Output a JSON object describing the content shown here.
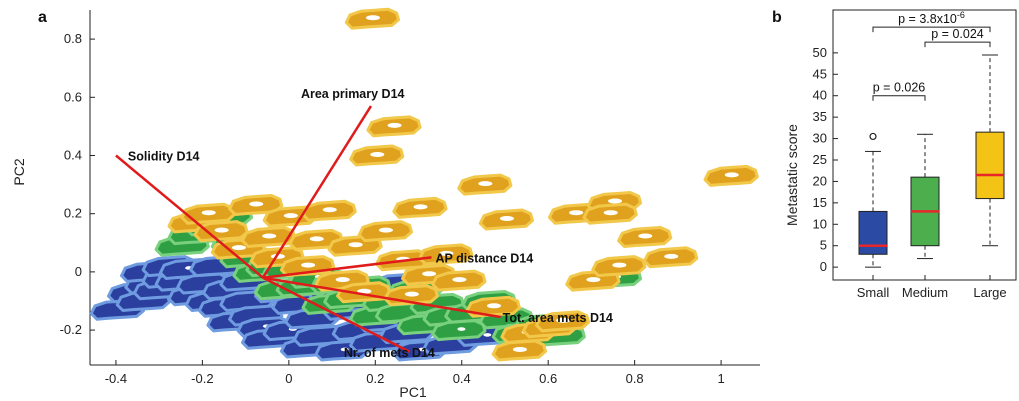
{
  "chart_data": [
    {
      "panel": "a",
      "type": "scatter",
      "xlabel": "PC1",
      "ylabel": "PC2",
      "xlim": [
        -0.46,
        1.09
      ],
      "ylim": [
        -0.32,
        0.9
      ],
      "xticks": [
        "-0.4",
        "-0.2",
        "0",
        "0.2",
        "0.4",
        "0.6",
        "0.8",
        "1"
      ],
      "xtick_values": [
        -0.4,
        -0.2,
        0,
        0.2,
        0.4,
        0.6,
        0.8,
        1
      ],
      "yticks": [
        "-0.2",
        "0",
        "0.2",
        "0.4",
        "0.6",
        "0.8"
      ],
      "ytick_values": [
        -0.2,
        0,
        0.2,
        0.4,
        0.6,
        0.8
      ],
      "colors": {
        "small": "#2b3f9e",
        "small_outline": "#6f9be0",
        "medium": "#2ea043",
        "medium_outline": "#79d07e",
        "large": "#e0a21e",
        "large_outline": "#f2c84a",
        "vector": "#e01b1b"
      },
      "origin": [
        -0.06,
        -0.02
      ],
      "vectors": [
        {
          "label": "Area primary D14",
          "end": [
            0.19,
            0.57
          ]
        },
        {
          "label": "Solidity D14",
          "end": [
            -0.4,
            0.4
          ]
        },
        {
          "label": "AP distance D14",
          "end": [
            0.33,
            0.05
          ]
        },
        {
          "label": "Tot. area mets D14",
          "end": [
            0.49,
            -0.155
          ]
        },
        {
          "label": "Nr. of mets D14",
          "end": [
            0.28,
            -0.275
          ]
        }
      ],
      "points": {
        "small": [
          [
            -0.4,
            -0.13
          ],
          [
            -0.36,
            -0.07
          ],
          [
            -0.34,
            -0.1
          ],
          [
            -0.32,
            -0.04
          ],
          [
            -0.33,
            0
          ],
          [
            -0.3,
            -0.06
          ],
          [
            -0.28,
            -0.02
          ],
          [
            -0.28,
            0.02
          ],
          [
            -0.25,
            -0.03
          ],
          [
            -0.24,
            0.01
          ],
          [
            -0.22,
            -0.08
          ],
          [
            -0.2,
            -0.04
          ],
          [
            -0.18,
            -0.1
          ],
          [
            -0.17,
            0.02
          ],
          [
            -0.15,
            -0.12
          ],
          [
            -0.14,
            -0.06
          ],
          [
            -0.13,
            -0.17
          ],
          [
            -0.1,
            -0.03
          ],
          [
            -0.1,
            -0.1
          ],
          [
            -0.08,
            -0.15
          ],
          [
            -0.06,
            -0.19
          ],
          [
            -0.05,
            -0.23
          ],
          [
            -0.02,
            -0.07
          ],
          [
            0,
            -0.2
          ],
          [
            0.02,
            -0.11
          ],
          [
            0.04,
            -0.26
          ],
          [
            0.05,
            -0.16
          ],
          [
            0.07,
            -0.22
          ],
          [
            0.1,
            -0.06
          ],
          [
            0.12,
            -0.27
          ],
          [
            0.14,
            -0.13
          ],
          [
            0.16,
            -0.2
          ],
          [
            0.18,
            -0.1
          ],
          [
            0.2,
            -0.24
          ],
          [
            0.22,
            -0.17
          ],
          [
            0.25,
            -0.04
          ],
          [
            0.27,
            -0.21
          ],
          [
            0.3,
            -0.27
          ],
          [
            0.33,
            -0.12
          ],
          [
            0.37,
            -0.25
          ],
          [
            0.42,
            -0.19
          ],
          [
            0.45,
            -0.22
          ]
        ],
        "medium": [
          [
            -0.25,
            0.09
          ],
          [
            -0.22,
            0.13
          ],
          [
            -0.18,
            0.16
          ],
          [
            -0.15,
            0.19
          ],
          [
            -0.12,
            0.1
          ],
          [
            -0.1,
            0.05
          ],
          [
            -0.07,
            0
          ],
          [
            -0.04,
            0.02
          ],
          [
            -0.02,
            -0.06
          ],
          [
            0,
            0.01
          ],
          [
            0.03,
            -0.05
          ],
          [
            0.06,
            -0.02
          ],
          [
            0.09,
            -0.11
          ],
          [
            0.11,
            -0.04
          ],
          [
            0.14,
            -0.09
          ],
          [
            0.17,
            -0.05
          ],
          [
            0.2,
            -0.15
          ],
          [
            0.23,
            -0.1
          ],
          [
            0.26,
            -0.14
          ],
          [
            0.29,
            -0.06
          ],
          [
            0.31,
            -0.18
          ],
          [
            0.34,
            -0.11
          ],
          [
            0.37,
            -0.15
          ],
          [
            0.39,
            -0.2
          ],
          [
            0.42,
            -0.14
          ],
          [
            0.46,
            -0.1
          ],
          [
            0.5,
            -0.16
          ],
          [
            0.53,
            -0.21
          ],
          [
            0.58,
            -0.18
          ],
          [
            0.62,
            -0.22
          ],
          [
            0.75,
            -0.02
          ]
        ],
        "large": [
          [
            -0.22,
            0.17
          ],
          [
            -0.19,
            0.2
          ],
          [
            -0.16,
            0.14
          ],
          [
            -0.12,
            0.08
          ],
          [
            -0.08,
            0.23
          ],
          [
            -0.05,
            0.12
          ],
          [
            -0.03,
            0.05
          ],
          [
            0,
            0.19
          ],
          [
            0.04,
            0.02
          ],
          [
            0.06,
            0.11
          ],
          [
            0.09,
            0.21
          ],
          [
            0.12,
            -0.03
          ],
          [
            0.15,
            0.09
          ],
          [
            0.17,
            -0.07
          ],
          [
            0.19,
            0.87
          ],
          [
            0.2,
            0.4
          ],
          [
            0.24,
            0.5
          ],
          [
            0.22,
            0.14
          ],
          [
            0.26,
            0.04
          ],
          [
            0.28,
            -0.08
          ],
          [
            0.3,
            0.22
          ],
          [
            0.32,
            -0.01
          ],
          [
            0.36,
            0.06
          ],
          [
            0.39,
            -0.03
          ],
          [
            0.45,
            0.3
          ],
          [
            0.47,
            -0.12
          ],
          [
            0.5,
            0.18
          ],
          [
            0.53,
            -0.27
          ],
          [
            0.55,
            -0.21
          ],
          [
            0.6,
            -0.19
          ],
          [
            0.63,
            -0.17
          ],
          [
            0.66,
            0.2
          ],
          [
            0.7,
            -0.03
          ],
          [
            0.75,
            0.24
          ],
          [
            0.76,
            0.02
          ],
          [
            0.82,
            0.12
          ],
          [
            0.88,
            0.05
          ],
          [
            1.02,
            0.33
          ],
          [
            0.74,
            0.2
          ]
        ]
      }
    },
    {
      "panel": "b",
      "type": "box",
      "ylabel": "Metastatic score",
      "ylim": [
        -3,
        60
      ],
      "yticks": [
        "0",
        "5",
        "10",
        "15",
        "20",
        "25",
        "30",
        "35",
        "40",
        "45",
        "50"
      ],
      "ytick_values": [
        0,
        5,
        10,
        15,
        20,
        25,
        30,
        35,
        40,
        45,
        50
      ],
      "categories": [
        "Small",
        "Medium",
        "Large"
      ],
      "boxes": [
        {
          "name": "Small",
          "whisker_low": 0,
          "q1": 3,
          "median": 5,
          "q3": 13,
          "whisker_high": 27,
          "outliers": [
            30.5
          ],
          "color": "#2b4aa3"
        },
        {
          "name": "Medium",
          "whisker_low": 2,
          "q1": 5,
          "median": 13,
          "q3": 21,
          "whisker_high": 31,
          "outliers": [],
          "color": "#4cae4c"
        },
        {
          "name": "Large",
          "whisker_low": 5,
          "q1": 16,
          "median": 21.5,
          "q3": 31.5,
          "whisker_high": 49.5,
          "outliers": [],
          "color": "#f3c316"
        }
      ],
      "median_color": "#e8262a",
      "significance": [
        {
          "from": "Small",
          "to": "Medium",
          "label": "p = 0.026",
          "y": 40
        },
        {
          "from": "Medium",
          "to": "Large",
          "label": "p = 0.024",
          "y": 52.5
        },
        {
          "from": "Small",
          "to": "Large",
          "label": "p = 3.8x10",
          "label_sup": "-6",
          "y": 56
        }
      ]
    }
  ]
}
